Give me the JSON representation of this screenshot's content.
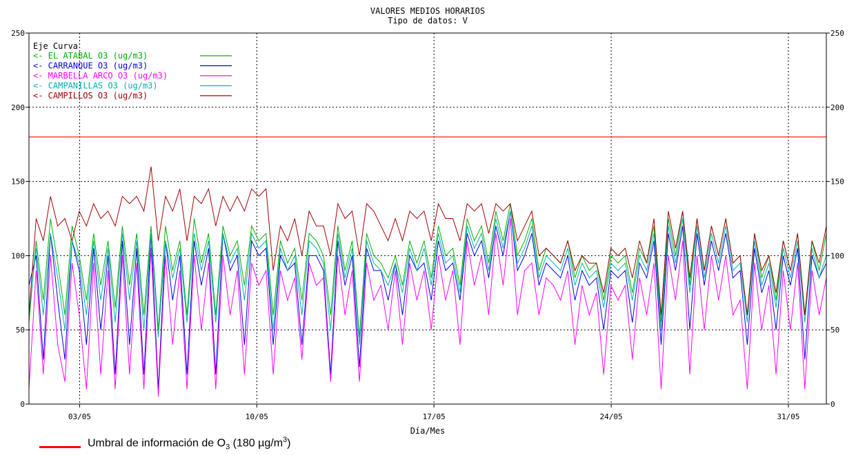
{
  "chart_data": {
    "type": "line",
    "title": "VALORES MEDIOS HORARIOS",
    "subtitle": "Tipo de datos:  V",
    "xlabel": "Día/Mes",
    "ylabel": "",
    "ylim": [
      0,
      250
    ],
    "yticks": [
      0,
      50,
      100,
      150,
      200,
      250
    ],
    "xlim": [
      0,
      31.5
    ],
    "x_ticks": [
      {
        "x": 2,
        "label": "03/05"
      },
      {
        "x": 9,
        "label": "10/05"
      },
      {
        "x": 16,
        "label": "17/05"
      },
      {
        "x": 23,
        "label": "24/05"
      },
      {
        "x": 30,
        "label": "31/05"
      }
    ],
    "grid": true,
    "legend_header": "Eje Curva",
    "legend_position": "top-left",
    "threshold": {
      "value": 180,
      "color": "#ff0000",
      "label_prefix": "Umbral de información  de O",
      "label_sub": "3",
      "label_mid": " (180 µg/m",
      "label_sup": "3",
      "label_suffix": ")"
    },
    "series": [
      {
        "name": "EL ATABAL O3  (ug/m3)",
        "color": "#00b000",
        "values": [
          55,
          110,
          70,
          125,
          95,
          60,
          120,
          100,
          70,
          115,
          80,
          110,
          65,
          120,
          80,
          115,
          60,
          120,
          50,
          120,
          90,
          110,
          60,
          125,
          95,
          115,
          60,
          120,
          100,
          110,
          80,
          120,
          110,
          115,
          60,
          110,
          95,
          105,
          70,
          115,
          110,
          100,
          60,
          120,
          90,
          110,
          45,
          115,
          100,
          95,
          85,
          100,
          80,
          110,
          95,
          110,
          85,
          120,
          100,
          105,
          80,
          125,
          110,
          120,
          95,
          130,
          110,
          135,
          100,
          110,
          125,
          90,
          105,
          100,
          95,
          110,
          85,
          100,
          90,
          95,
          70,
          100,
          95,
          100,
          75,
          105,
          95,
          120,
          55,
          125,
          100,
          130,
          80,
          125,
          90,
          120,
          100,
          125,
          95,
          100,
          60,
          115,
          85,
          100,
          70,
          110,
          90,
          115,
          60,
          110,
          90,
          115
        ]
      },
      {
        "name": "CARRANQUE O3  (ug/m3)",
        "color": "#0000e0",
        "values": [
          80,
          100,
          30,
          115,
          70,
          30,
          110,
          90,
          40,
          105,
          50,
          100,
          20,
          110,
          40,
          105,
          20,
          115,
          10,
          110,
          70,
          100,
          20,
          110,
          80,
          105,
          20,
          115,
          90,
          100,
          40,
          110,
          100,
          105,
          40,
          100,
          90,
          95,
          40,
          100,
          100,
          90,
          20,
          110,
          80,
          100,
          25,
          105,
          90,
          90,
          70,
          95,
          60,
          100,
          90,
          95,
          70,
          110,
          90,
          95,
          70,
          115,
          100,
          110,
          85,
          120,
          100,
          130,
          90,
          100,
          115,
          80,
          95,
          90,
          85,
          100,
          70,
          90,
          80,
          85,
          50,
          90,
          85,
          90,
          55,
          95,
          85,
          110,
          40,
          115,
          90,
          120,
          50,
          115,
          80,
          110,
          90,
          115,
          85,
          90,
          40,
          105,
          75,
          90,
          50,
          100,
          80,
          105,
          30,
          100,
          85,
          95
        ]
      },
      {
        "name": "MARBELLA ARCO O3  (ug/m3)",
        "color": "#ff00ff",
        "values": [
          10,
          90,
          20,
          100,
          40,
          15,
          95,
          60,
          10,
          95,
          20,
          90,
          10,
          100,
          20,
          95,
          10,
          105,
          5,
          100,
          40,
          90,
          10,
          100,
          50,
          95,
          10,
          100,
          60,
          90,
          20,
          95,
          80,
          90,
          20,
          90,
          70,
          85,
          30,
          95,
          80,
          85,
          15,
          100,
          60,
          90,
          15,
          95,
          70,
          80,
          50,
          90,
          40,
          95,
          70,
          90,
          50,
          100,
          70,
          90,
          40,
          110,
          80,
          100,
          60,
          115,
          80,
          125,
          60,
          90,
          95,
          60,
          85,
          80,
          70,
          90,
          40,
          80,
          60,
          75,
          20,
          80,
          70,
          80,
          30,
          85,
          60,
          95,
          10,
          100,
          70,
          110,
          20,
          100,
          50,
          100,
          70,
          100,
          60,
          70,
          10,
          95,
          50,
          80,
          20,
          90,
          50,
          95,
          10,
          90,
          60,
          85
        ]
      },
      {
        "name": "CAMPANILLAS O3  (ug/m3)",
        "color": "#00b0b0",
        "values": [
          60,
          105,
          60,
          115,
          85,
          50,
          110,
          95,
          60,
          110,
          70,
          105,
          55,
          115,
          70,
          110,
          50,
          115,
          45,
          110,
          85,
          105,
          55,
          115,
          90,
          110,
          55,
          115,
          95,
          105,
          70,
          115,
          105,
          110,
          50,
          105,
          90,
          100,
          60,
          110,
          105,
          95,
          50,
          115,
          85,
          105,
          40,
          110,
          95,
          90,
          80,
          95,
          75,
          105,
          90,
          105,
          80,
          115,
          95,
          100,
          75,
          120,
          105,
          115,
          90,
          125,
          105,
          130,
          95,
          105,
          120,
          85,
          100,
          95,
          90,
          105,
          80,
          95,
          85,
          90,
          65,
          95,
          90,
          95,
          70,
          100,
          90,
          115,
          50,
          120,
          95,
          125,
          75,
          120,
          85,
          115,
          95,
          120,
          90,
          95,
          55,
          110,
          80,
          95,
          65,
          105,
          85,
          110,
          55,
          105,
          85,
          100
        ]
      },
      {
        "name": "CAMPILLOS O3  (ug/m3)",
        "color": "#a00000",
        "values": [
          60,
          125,
          110,
          140,
          120,
          125,
          110,
          130,
          120,
          135,
          125,
          130,
          120,
          140,
          135,
          140,
          130,
          160,
          110,
          140,
          130,
          145,
          110,
          140,
          135,
          145,
          120,
          140,
          130,
          140,
          130,
          145,
          140,
          145,
          90,
          120,
          110,
          125,
          100,
          130,
          120,
          120,
          100,
          135,
          125,
          130,
          100,
          135,
          130,
          120,
          110,
          125,
          110,
          130,
          125,
          130,
          110,
          135,
          125,
          125,
          110,
          135,
          130,
          135,
          115,
          135,
          130,
          135,
          110,
          120,
          130,
          100,
          105,
          100,
          95,
          110,
          90,
          100,
          95,
          95,
          75,
          105,
          100,
          105,
          85,
          110,
          95,
          125,
          60,
          130,
          105,
          130,
          85,
          125,
          90,
          120,
          100,
          125,
          95,
          100,
          60,
          115,
          90,
          100,
          75,
          110,
          90,
          115,
          60,
          110,
          95,
          120
        ]
      }
    ]
  }
}
